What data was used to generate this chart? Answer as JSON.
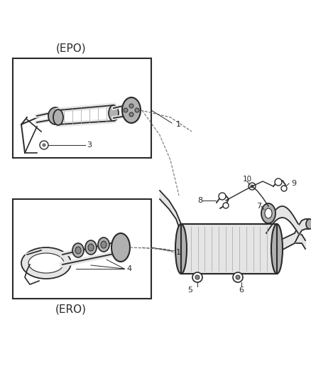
{
  "bg_color": "#ffffff",
  "fig_width": 4.38,
  "fig_height": 5.33,
  "dpi": 100,
  "epo_label": "(EPO)",
  "ero_label": "(ERO)",
  "line_color": "#2a2a2a",
  "text_color": "#2a2a2a",
  "gray_fill": "#d0d0d0",
  "light_gray": "#e5e5e5",
  "mid_gray": "#b0b0b0",
  "dark_gray": "#888888"
}
